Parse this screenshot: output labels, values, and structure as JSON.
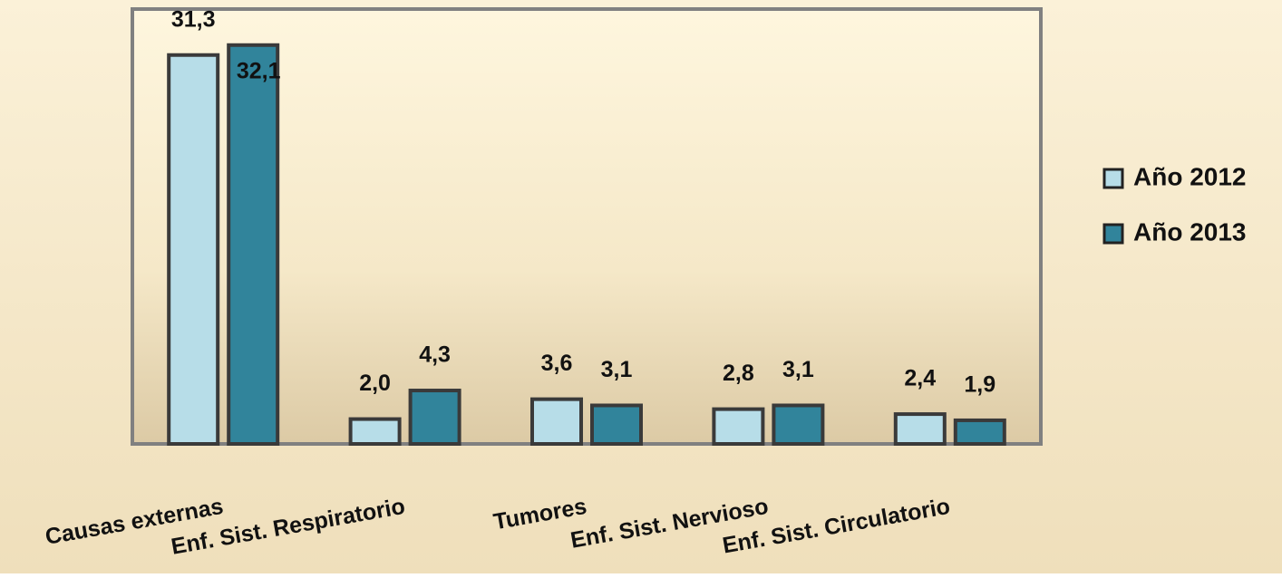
{
  "chart_data": {
    "type": "bar",
    "categories": [
      "Causas externas",
      "Enf. Sist. Respiratorio",
      "Tumores",
      "Enf. Sist. Nervioso",
      "Enf. Sist. Circulatorio"
    ],
    "series": [
      {
        "name": "Año 2012",
        "color": "#b7dde8",
        "values": [
          31.3,
          2.0,
          3.6,
          2.8,
          2.4
        ],
        "value_labels": [
          "31,3",
          "2,0",
          "3,6",
          "2,8",
          "2,4"
        ]
      },
      {
        "name": "Año 2013",
        "color": "#31849b",
        "values": [
          32.1,
          4.3,
          3.1,
          3.1,
          1.9
        ],
        "value_labels": [
          "32,1",
          "4,3",
          "3,1",
          "3,1",
          "1,9"
        ]
      }
    ],
    "ylim": [
      0,
      35
    ],
    "legend": "right"
  }
}
